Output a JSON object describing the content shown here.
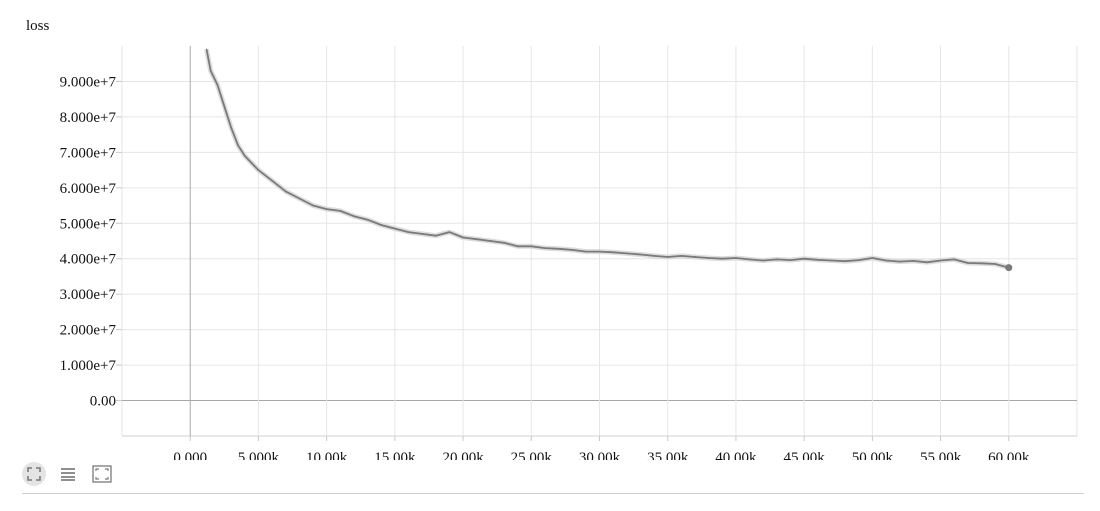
{
  "chart_data": {
    "type": "line",
    "title": "loss",
    "xlabel": "",
    "ylabel": "",
    "xlim": [
      -5000,
      65000
    ],
    "ylim": [
      -10000000,
      100000000
    ],
    "x_ticks": [
      0,
      5000,
      10000,
      15000,
      20000,
      25000,
      30000,
      35000,
      40000,
      45000,
      50000,
      55000,
      60000
    ],
    "x_tick_labels": [
      "0.000",
      "5.000k",
      "10.00k",
      "15.00k",
      "20.00k",
      "25.00k",
      "30.00k",
      "35.00k",
      "40.00k",
      "45.00k",
      "50.00k",
      "55.00k",
      "60.00k"
    ],
    "y_ticks": [
      0,
      10000000,
      20000000,
      30000000,
      40000000,
      50000000,
      60000000,
      70000000,
      80000000,
      90000000
    ],
    "y_tick_labels": [
      "0.00",
      "1.000e+7",
      "2.000e+7",
      "3.000e+7",
      "4.000e+7",
      "5.000e+7",
      "6.000e+7",
      "7.000e+7",
      "8.000e+7",
      "9.000e+7"
    ],
    "grid": true,
    "colors": {
      "smoothed": "#7a7a7a",
      "raw": "#d9d9d9",
      "grid": "#e6e6e6",
      "zero_axis": "#a8a8a8"
    },
    "series": [
      {
        "x": [
          1200,
          1500,
          2000,
          2500,
          3000,
          3500,
          4000,
          5000,
          6000,
          7000,
          8000,
          9000,
          10000,
          11000,
          12000,
          13000,
          14000,
          15000,
          16000,
          17000,
          18000,
          19000,
          20000,
          21000,
          22000,
          23000,
          24000,
          25000,
          26000,
          27000,
          28000,
          29000,
          30000,
          31000,
          32000,
          33000,
          34000,
          35000,
          36000,
          37000,
          38000,
          39000,
          40000,
          41000,
          42000,
          43000,
          44000,
          45000,
          46000,
          47000,
          48000,
          49000,
          50000,
          51000,
          52000,
          53000,
          54000,
          55000,
          56000,
          57000,
          58000,
          59000,
          60000
        ],
        "values": [
          99000000,
          93000000,
          89000000,
          83000000,
          77000000,
          72000000,
          69000000,
          65000000,
          62000000,
          59000000,
          57000000,
          55000000,
          54000000,
          53500000,
          52000000,
          51000000,
          49500000,
          48500000,
          47500000,
          47000000,
          46500000,
          47500000,
          46000000,
          45500000,
          45000000,
          44500000,
          43500000,
          43500000,
          43000000,
          42800000,
          42500000,
          42000000,
          42000000,
          41800000,
          41500000,
          41200000,
          40800000,
          40500000,
          40800000,
          40500000,
          40200000,
          40000000,
          40200000,
          39800000,
          39500000,
          39800000,
          39600000,
          40000000,
          39700000,
          39500000,
          39300000,
          39600000,
          40200000,
          39500000,
          39200000,
          39400000,
          39000000,
          39500000,
          39800000,
          38800000,
          38700000,
          38500000,
          37500000
        ]
      }
    ]
  },
  "toolbar": {
    "fit_icon": "fit-domain-icon",
    "log_icon": "list-lines-icon",
    "expand_icon": "expand-frame-icon"
  }
}
